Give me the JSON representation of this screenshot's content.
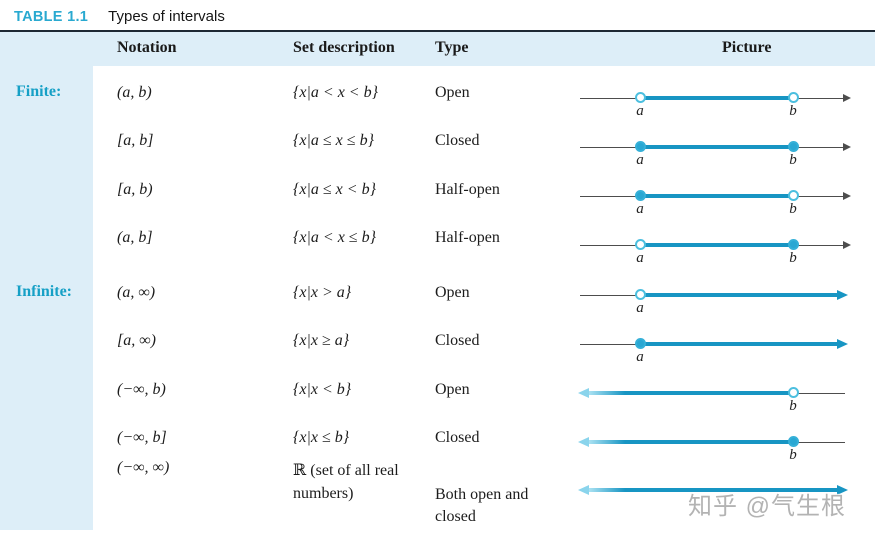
{
  "title": {
    "label": "TABLE 1.1",
    "text": "Types of intervals"
  },
  "columns": [
    "Notation",
    "Set description",
    "Type",
    "Picture"
  ],
  "rows": [
    {
      "group": "Finite:",
      "notation": "(a, b)",
      "set": "{x|a < x < b}",
      "type": "Open",
      "picture": {
        "span": "ab",
        "left": "open",
        "right": "open",
        "labels": [
          "a",
          "b"
        ]
      }
    },
    {
      "group": "",
      "notation": "[a, b]",
      "set": "{x|a ≤ x ≤ b}",
      "type": "Closed",
      "picture": {
        "span": "ab",
        "left": "closed",
        "right": "closed",
        "labels": [
          "a",
          "b"
        ]
      }
    },
    {
      "group": "",
      "notation": "[a, b)",
      "set": "{x|a ≤ x < b}",
      "type": "Half-open",
      "picture": {
        "span": "ab",
        "left": "closed",
        "right": "open",
        "labels": [
          "a",
          "b"
        ]
      }
    },
    {
      "group": "",
      "notation": "(a, b]",
      "set": "{x|a < x ≤ b}",
      "type": "Half-open",
      "picture": {
        "span": "ab",
        "left": "open",
        "right": "closed",
        "labels": [
          "a",
          "b"
        ]
      }
    },
    {
      "group": "Infinite:",
      "notation": "(a, ∞)",
      "set": "{x|x > a}",
      "type": "Open",
      "picture": {
        "span": "a-inf",
        "left": "open",
        "right": null,
        "labels": [
          "a"
        ]
      }
    },
    {
      "group": "",
      "notation": "[a, ∞)",
      "set": "{x|x ≥ a}",
      "type": "Closed",
      "picture": {
        "span": "a-inf",
        "left": "closed",
        "right": null,
        "labels": [
          "a"
        ]
      }
    },
    {
      "group": "",
      "notation": "(−∞, b)",
      "set": "{x|x < b}",
      "type": "Open",
      "picture": {
        "span": "inf-b",
        "left": null,
        "right": "open",
        "labels": [
          "b"
        ]
      }
    },
    {
      "group": "",
      "notation": "(−∞, b]",
      "set": "{x|x ≤ b}",
      "type": "Closed",
      "picture": {
        "span": "inf-b",
        "left": null,
        "right": "closed",
        "labels": [
          "b"
        ]
      }
    },
    {
      "group": "",
      "notation": "(−∞, ∞)",
      "set": "ℝ (set of all real numbers)",
      "type": "Both open and closed",
      "picture": {
        "span": "inf-inf",
        "left": null,
        "right": null,
        "labels": []
      }
    }
  ],
  "watermark": "知乎 @气生根",
  "colors": {
    "accent_text": "#29a9d0",
    "group_label": "#16a0c6",
    "interval_line": "#1795c3",
    "closed_dot": "#29a7d3",
    "light_arrow": "#8ad4ec",
    "band_background": "#ddeef8",
    "rule": "#1d2834"
  }
}
